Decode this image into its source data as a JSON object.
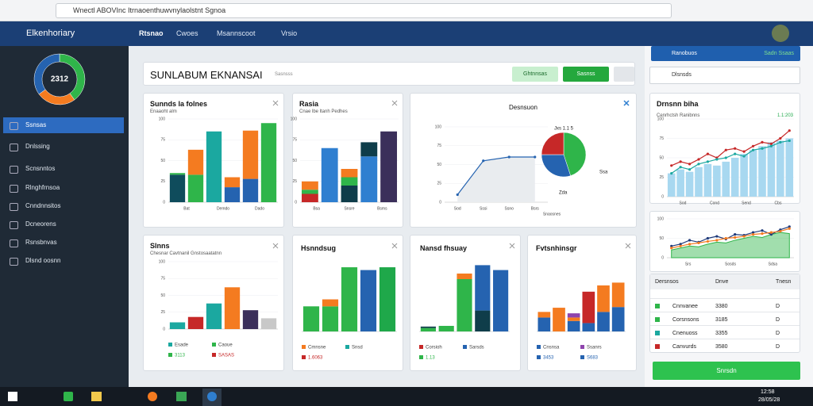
{
  "browser": {
    "url": "Wnectl ABOVInc Itrnaoenthuwvnylaolstnt Sgnoa"
  },
  "nav": {
    "brand": "Elkenhoriary",
    "items": [
      "Rtsnao",
      "Cwoes",
      "Msannscoot",
      "Vrsio"
    ]
  },
  "sidebar": {
    "items": [
      "Ssnsas",
      "Dnlssing",
      "Scnsnntos",
      "Rlnghfrnsoa",
      "Cnndnnsitos",
      "Dcneorens",
      "Rsnsbnvas",
      "Dlsnd oosnn"
    ]
  },
  "header": {
    "title": "SUNLABUM EKNANSAI",
    "subtitle": "Sasnsss",
    "buttons": [
      "Ghtnnsas",
      "Sasnss"
    ]
  },
  "right": {
    "top_button": "Ranobuos",
    "top_value": "Sadn Ssaas",
    "search": "Dlsnsds",
    "table": {
      "columns": [
        "Dersnsos",
        "Dnve",
        "Tnesn"
      ],
      "rows": [
        [
          "Cnnvanee",
          "3380",
          "D"
        ],
        [
          "Corsnsons",
          "3185",
          "D"
        ],
        [
          "Cnenuoss",
          "3355",
          "D"
        ],
        [
          "Canvurds",
          "3580",
          "D"
        ]
      ]
    },
    "button": "Snrsdn"
  },
  "taskbar": {
    "time": "12:58",
    "date": "28/05/28"
  },
  "chart_data": [
    {
      "type": "donut",
      "label": "2312",
      "values": [
        40,
        25,
        35
      ],
      "colors": [
        "#2fb54a",
        "#f47b20",
        "#2563b0"
      ]
    },
    {
      "type": "bar",
      "title": "Sunnds la folnes",
      "subtitle": "Enaaoht alm",
      "ylim": [
        0,
        100
      ],
      "yticks": [
        0,
        25,
        50,
        75,
        100
      ],
      "x_labels": [
        "Bat",
        "Demdo",
        "Dado"
      ],
      "series": [
        {
          "color": "#0f4c5c",
          "values": [
            33,
            0,
            0,
            0,
            0,
            0
          ]
        },
        {
          "color": "#2fb54a",
          "values": [
            2,
            33,
            0,
            0,
            0,
            95
          ]
        },
        {
          "color": "#1ba8a0",
          "values": [
            0,
            0,
            85,
            0,
            0,
            0
          ]
        },
        {
          "color": "#2563b0",
          "values": [
            0,
            0,
            0,
            18,
            28,
            0
          ]
        },
        {
          "color": "#f47b20",
          "values": [
            0,
            30,
            0,
            12,
            58,
            0
          ]
        }
      ]
    },
    {
      "type": "bar",
      "title": "Rasia",
      "subtitle": "Cnae lbe ltanh Pedhes",
      "ylim": [
        0,
        100
      ],
      "yticks": [
        0,
        25,
        50,
        75,
        100
      ],
      "x_labels": [
        "Bsa",
        "Snsre",
        "Bsms"
      ],
      "series": [
        {
          "color": "#c62828",
          "values": [
            10,
            0,
            0,
            0,
            0
          ]
        },
        {
          "color": "#2f7fd0",
          "values": [
            0,
            65,
            0,
            55,
            0
          ]
        },
        {
          "color": "#0f3d4a",
          "values": [
            0,
            0,
            20,
            17,
            0
          ]
        },
        {
          "color": "#2fb54a",
          "values": [
            5,
            0,
            10,
            0,
            0
          ]
        },
        {
          "color": "#f47b20",
          "values": [
            10,
            0,
            10,
            0,
            0
          ]
        },
        {
          "color": "#3b2f5a",
          "values": [
            0,
            0,
            0,
            0,
            85
          ]
        }
      ]
    },
    {
      "type": "line",
      "title": "Desnsuon",
      "xlabel": "Snaosnes",
      "ylim": [
        0,
        100
      ],
      "yticks": [
        0,
        25,
        50,
        75,
        100
      ],
      "x_labels": [
        "Sod",
        "Sssi",
        "Ssno",
        "Bsrs"
      ],
      "series": [
        {
          "color": "#2563b0",
          "values": [
            10,
            55,
            60,
            60
          ]
        }
      ]
    },
    {
      "type": "pie",
      "label": "Jxs 1.1 5",
      "annotations": [
        "Ssa",
        "Zda"
      ],
      "values": [
        45,
        30,
        25
      ],
      "colors": [
        "#2fb54a",
        "#2563b0",
        "#c62828"
      ]
    },
    {
      "type": "bar",
      "title": "Slnns",
      "subtitle": "Chesnar Cavtnanil Gnstosaatatnn",
      "ylim": [
        0,
        100
      ],
      "yticks": [
        0,
        25,
        50,
        75,
        100
      ],
      "series": [
        {
          "color": "#1ba8a0",
          "values": [
            10,
            0,
            38,
            0,
            0,
            0
          ]
        },
        {
          "color": "#c62828",
          "values": [
            0,
            18,
            0,
            0,
            0,
            0
          ]
        },
        {
          "color": "#f47b20",
          "values": [
            0,
            0,
            0,
            62,
            0,
            0
          ]
        },
        {
          "color": "#3b2f5a",
          "values": [
            0,
            0,
            0,
            0,
            28,
            0
          ]
        },
        {
          "color": "#c8c8c8",
          "values": [
            0,
            0,
            0,
            0,
            0,
            16
          ]
        }
      ],
      "legend": [
        {
          "label": "Esade",
          "color": "#1ba8a0"
        },
        {
          "label": "Caoue",
          "color": "#2fb54a"
        },
        {
          "label": "3113",
          "color": "#2fb54a"
        },
        {
          "label": "SASAS",
          "color": "#c62828"
        }
      ]
    },
    {
      "type": "bar",
      "title": "Hsnndsug",
      "series": [
        {
          "color": "#2fb54a",
          "values": [
            36,
            36,
            92,
            0,
            0
          ]
        },
        {
          "color": "#f47b20",
          "values": [
            0,
            10,
            0,
            0,
            0
          ]
        },
        {
          "color": "#2563b0",
          "values": [
            0,
            0,
            0,
            88,
            0
          ]
        },
        {
          "color": "#1fa84a",
          "values": [
            0,
            0,
            0,
            0,
            92
          ]
        }
      ],
      "ylim": [
        0,
        100
      ],
      "legend": [
        {
          "label": "Cmnsne",
          "color": "#f47b20"
        },
        {
          "label": "Snsd",
          "color": "#1ba8a0"
        },
        {
          "label": "1.6063",
          "color": "#c62828"
        }
      ]
    },
    {
      "type": "bar",
      "title": "Nansd fhsuay",
      "ylim": [
        0,
        100
      ],
      "series": [
        {
          "color": "#2fb54a",
          "values": [
            5,
            8,
            75,
            0,
            0
          ]
        },
        {
          "color": "#0f3d4a",
          "values": [
            2,
            0,
            0,
            30,
            0
          ]
        },
        {
          "color": "#2563b0",
          "values": [
            0,
            0,
            0,
            65,
            88
          ]
        },
        {
          "color": "#f47b20",
          "values": [
            0,
            0,
            8,
            0,
            0
          ]
        }
      ],
      "legend": [
        {
          "label": "Corsioh",
          "color": "#c62828"
        },
        {
          "label": "Sarsds",
          "color": "#2563b0"
        },
        {
          "label": "1.13",
          "color": "#2fb54a"
        }
      ]
    },
    {
      "type": "bar",
      "title": "Fvtsnhinsgr",
      "ylim": [
        0,
        100
      ],
      "series": [
        {
          "color": "#2563b0",
          "values": [
            20,
            0,
            15,
            12,
            28,
            35
          ]
        },
        {
          "color": "#c62828",
          "values": [
            0,
            0,
            0,
            45,
            0,
            0
          ]
        },
        {
          "color": "#f47b20",
          "values": [
            8,
            34,
            5,
            0,
            38,
            35
          ]
        },
        {
          "color": "#8e44ad",
          "values": [
            0,
            0,
            6,
            0,
            0,
            0
          ]
        }
      ],
      "legend": [
        {
          "label": "Cnsnsa",
          "color": "#2563b0"
        },
        {
          "label": "Ssanrs",
          "color": "#8e44ad"
        },
        {
          "label": "3453",
          "color": "#2563b0"
        },
        {
          "label": "S683",
          "color": "#2563b0"
        }
      ]
    },
    {
      "type": "combo",
      "title": "Drnsnn biha",
      "subtitle": "Cenrhctsh Ranibnns",
      "value": "1.1:203",
      "ylim": [
        0,
        100
      ],
      "yticks": [
        0,
        25,
        50,
        75,
        100
      ],
      "x_labels": [
        "Sod",
        "Cond",
        "Send",
        "Cbs"
      ],
      "series": [
        {
          "style": "bar",
          "color": "#a8d8f0",
          "values": [
            30,
            35,
            32,
            38,
            42,
            40,
            45,
            50,
            55,
            60,
            65,
            70,
            72,
            75
          ]
        },
        {
          "style": "line",
          "color": "#c62828",
          "values": [
            40,
            45,
            42,
            48,
            55,
            50,
            60,
            62,
            58,
            65,
            70,
            68,
            75,
            85
          ]
        },
        {
          "style": "line",
          "color": "#1ba8a0",
          "values": [
            30,
            38,
            35,
            42,
            45,
            48,
            50,
            55,
            52,
            60,
            62,
            65,
            70,
            72
          ]
        }
      ]
    },
    {
      "type": "area",
      "ylim": [
        0,
        100
      ],
      "yticks": [
        0,
        50,
        100
      ],
      "x_labels": [
        "Srs",
        "Sosds",
        "Sdsa"
      ],
      "series": [
        {
          "style": "area",
          "color": "#2fb54a",
          "values": [
            20,
            25,
            30,
            28,
            35,
            40,
            38,
            45,
            50,
            55,
            52,
            60,
            65,
            62
          ]
        },
        {
          "style": "line",
          "color": "#1f3a7a",
          "values": [
            30,
            35,
            45,
            40,
            50,
            55,
            48,
            60,
            58,
            65,
            70,
            60,
            72,
            80
          ]
        },
        {
          "style": "line",
          "color": "#f47b20",
          "values": [
            25,
            30,
            35,
            38,
            42,
            45,
            50,
            52,
            55,
            60,
            62,
            65,
            68,
            75
          ]
        }
      ]
    }
  ]
}
